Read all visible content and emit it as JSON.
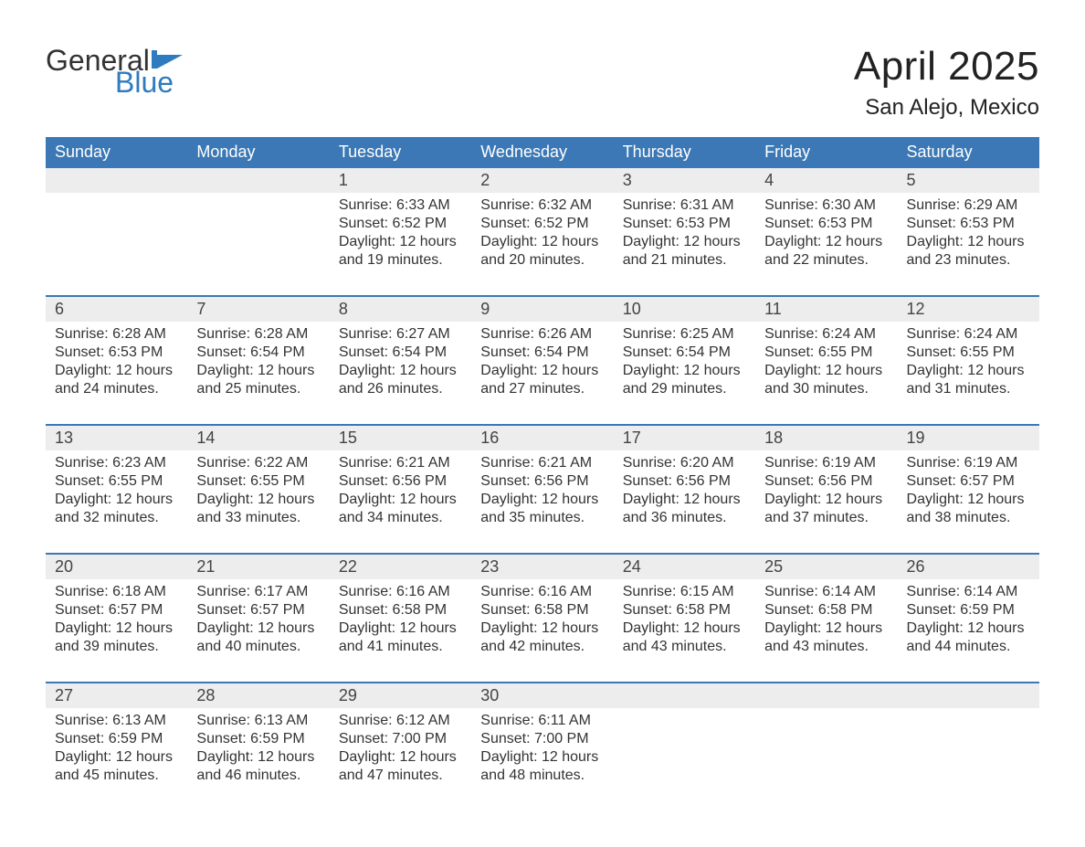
{
  "brand": {
    "word1": "General",
    "word2": "Blue"
  },
  "title": "April 2025",
  "location": "San Alejo, Mexico",
  "colors": {
    "header_bg": "#3b78b5",
    "header_text": "#ffffff",
    "daynum_bg": "#ededed",
    "rule": "#3b78b5",
    "text": "#333333",
    "logo_blue": "#2f7bbf"
  },
  "day_headers": [
    "Sunday",
    "Monday",
    "Tuesday",
    "Wednesday",
    "Thursday",
    "Friday",
    "Saturday"
  ],
  "weeks": [
    [
      null,
      null,
      {
        "n": "1",
        "sr": "Sunrise: 6:33 AM",
        "ss": "Sunset: 6:52 PM",
        "d1": "Daylight: 12 hours",
        "d2": "and 19 minutes."
      },
      {
        "n": "2",
        "sr": "Sunrise: 6:32 AM",
        "ss": "Sunset: 6:52 PM",
        "d1": "Daylight: 12 hours",
        "d2": "and 20 minutes."
      },
      {
        "n": "3",
        "sr": "Sunrise: 6:31 AM",
        "ss": "Sunset: 6:53 PM",
        "d1": "Daylight: 12 hours",
        "d2": "and 21 minutes."
      },
      {
        "n": "4",
        "sr": "Sunrise: 6:30 AM",
        "ss": "Sunset: 6:53 PM",
        "d1": "Daylight: 12 hours",
        "d2": "and 22 minutes."
      },
      {
        "n": "5",
        "sr": "Sunrise: 6:29 AM",
        "ss": "Sunset: 6:53 PM",
        "d1": "Daylight: 12 hours",
        "d2": "and 23 minutes."
      }
    ],
    [
      {
        "n": "6",
        "sr": "Sunrise: 6:28 AM",
        "ss": "Sunset: 6:53 PM",
        "d1": "Daylight: 12 hours",
        "d2": "and 24 minutes."
      },
      {
        "n": "7",
        "sr": "Sunrise: 6:28 AM",
        "ss": "Sunset: 6:54 PM",
        "d1": "Daylight: 12 hours",
        "d2": "and 25 minutes."
      },
      {
        "n": "8",
        "sr": "Sunrise: 6:27 AM",
        "ss": "Sunset: 6:54 PM",
        "d1": "Daylight: 12 hours",
        "d2": "and 26 minutes."
      },
      {
        "n": "9",
        "sr": "Sunrise: 6:26 AM",
        "ss": "Sunset: 6:54 PM",
        "d1": "Daylight: 12 hours",
        "d2": "and 27 minutes."
      },
      {
        "n": "10",
        "sr": "Sunrise: 6:25 AM",
        "ss": "Sunset: 6:54 PM",
        "d1": "Daylight: 12 hours",
        "d2": "and 29 minutes."
      },
      {
        "n": "11",
        "sr": "Sunrise: 6:24 AM",
        "ss": "Sunset: 6:55 PM",
        "d1": "Daylight: 12 hours",
        "d2": "and 30 minutes."
      },
      {
        "n": "12",
        "sr": "Sunrise: 6:24 AM",
        "ss": "Sunset: 6:55 PM",
        "d1": "Daylight: 12 hours",
        "d2": "and 31 minutes."
      }
    ],
    [
      {
        "n": "13",
        "sr": "Sunrise: 6:23 AM",
        "ss": "Sunset: 6:55 PM",
        "d1": "Daylight: 12 hours",
        "d2": "and 32 minutes."
      },
      {
        "n": "14",
        "sr": "Sunrise: 6:22 AM",
        "ss": "Sunset: 6:55 PM",
        "d1": "Daylight: 12 hours",
        "d2": "and 33 minutes."
      },
      {
        "n": "15",
        "sr": "Sunrise: 6:21 AM",
        "ss": "Sunset: 6:56 PM",
        "d1": "Daylight: 12 hours",
        "d2": "and 34 minutes."
      },
      {
        "n": "16",
        "sr": "Sunrise: 6:21 AM",
        "ss": "Sunset: 6:56 PM",
        "d1": "Daylight: 12 hours",
        "d2": "and 35 minutes."
      },
      {
        "n": "17",
        "sr": "Sunrise: 6:20 AM",
        "ss": "Sunset: 6:56 PM",
        "d1": "Daylight: 12 hours",
        "d2": "and 36 minutes."
      },
      {
        "n": "18",
        "sr": "Sunrise: 6:19 AM",
        "ss": "Sunset: 6:56 PM",
        "d1": "Daylight: 12 hours",
        "d2": "and 37 minutes."
      },
      {
        "n": "19",
        "sr": "Sunrise: 6:19 AM",
        "ss": "Sunset: 6:57 PM",
        "d1": "Daylight: 12 hours",
        "d2": "and 38 minutes."
      }
    ],
    [
      {
        "n": "20",
        "sr": "Sunrise: 6:18 AM",
        "ss": "Sunset: 6:57 PM",
        "d1": "Daylight: 12 hours",
        "d2": "and 39 minutes."
      },
      {
        "n": "21",
        "sr": "Sunrise: 6:17 AM",
        "ss": "Sunset: 6:57 PM",
        "d1": "Daylight: 12 hours",
        "d2": "and 40 minutes."
      },
      {
        "n": "22",
        "sr": "Sunrise: 6:16 AM",
        "ss": "Sunset: 6:58 PM",
        "d1": "Daylight: 12 hours",
        "d2": "and 41 minutes."
      },
      {
        "n": "23",
        "sr": "Sunrise: 6:16 AM",
        "ss": "Sunset: 6:58 PM",
        "d1": "Daylight: 12 hours",
        "d2": "and 42 minutes."
      },
      {
        "n": "24",
        "sr": "Sunrise: 6:15 AM",
        "ss": "Sunset: 6:58 PM",
        "d1": "Daylight: 12 hours",
        "d2": "and 43 minutes."
      },
      {
        "n": "25",
        "sr": "Sunrise: 6:14 AM",
        "ss": "Sunset: 6:58 PM",
        "d1": "Daylight: 12 hours",
        "d2": "and 43 minutes."
      },
      {
        "n": "26",
        "sr": "Sunrise: 6:14 AM",
        "ss": "Sunset: 6:59 PM",
        "d1": "Daylight: 12 hours",
        "d2": "and 44 minutes."
      }
    ],
    [
      {
        "n": "27",
        "sr": "Sunrise: 6:13 AM",
        "ss": "Sunset: 6:59 PM",
        "d1": "Daylight: 12 hours",
        "d2": "and 45 minutes."
      },
      {
        "n": "28",
        "sr": "Sunrise: 6:13 AM",
        "ss": "Sunset: 6:59 PM",
        "d1": "Daylight: 12 hours",
        "d2": "and 46 minutes."
      },
      {
        "n": "29",
        "sr": "Sunrise: 6:12 AM",
        "ss": "Sunset: 7:00 PM",
        "d1": "Daylight: 12 hours",
        "d2": "and 47 minutes."
      },
      {
        "n": "30",
        "sr": "Sunrise: 6:11 AM",
        "ss": "Sunset: 7:00 PM",
        "d1": "Daylight: 12 hours",
        "d2": "and 48 minutes."
      },
      null,
      null,
      null
    ]
  ]
}
